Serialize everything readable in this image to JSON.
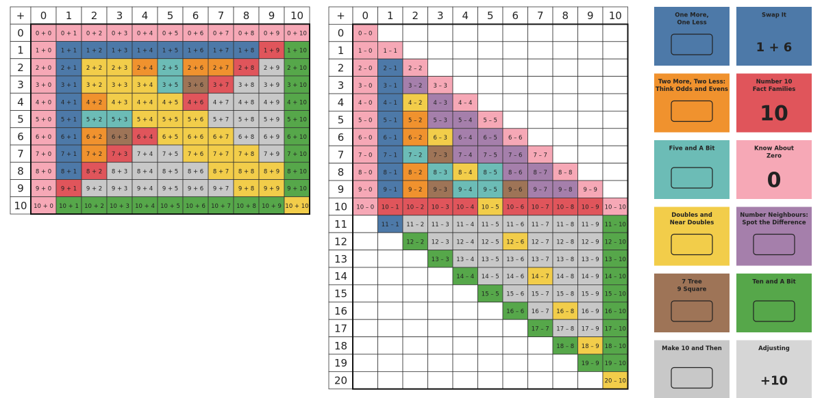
{
  "addition_table": {
    "corner": "+",
    "columns": [
      0,
      1,
      2,
      3,
      4,
      5,
      6,
      7,
      8,
      9,
      10
    ],
    "rows": [
      {
        "label": 0,
        "cells": [
          "0 + 0",
          "0 + 1",
          "0 + 2",
          "0 + 3",
          "0 + 4",
          "0 + 5",
          "0 + 6",
          "0 + 7",
          "0 + 8",
          "0 + 9",
          "0 + 10"
        ],
        "strategy": [
          5,
          5,
          5,
          5,
          5,
          5,
          5,
          5,
          5,
          5,
          5
        ]
      },
      {
        "label": 1,
        "cells": [
          "1 + 0",
          "1 + 1",
          "1 + 2",
          "1 + 3",
          "1 + 4",
          "1 + 5",
          "1 + 6",
          "1 + 7",
          "1 + 8",
          "1 + 9",
          "1 + 10"
        ],
        "strategy": [
          5,
          0,
          0,
          0,
          0,
          0,
          0,
          0,
          0,
          3,
          9
        ]
      },
      {
        "label": 2,
        "cells": [
          "2 + 0",
          "2 + 1",
          "2 + 2",
          "2 + 3",
          "2 + 4",
          "2 + 5",
          "2 + 6",
          "2 + 7",
          "2 + 8",
          "2 + 9",
          "2 + 10"
        ],
        "strategy": [
          5,
          0,
          6,
          6,
          2,
          4,
          2,
          2,
          3,
          10,
          9
        ]
      },
      {
        "label": 3,
        "cells": [
          "3 + 0",
          "3 + 1",
          "3 + 2",
          "3 + 3",
          "3 + 4",
          "3 + 5",
          "3 + 6",
          "3 + 7",
          "3 + 8",
          "3 + 9",
          "3 + 10"
        ],
        "strategy": [
          5,
          0,
          6,
          6,
          6,
          4,
          8,
          3,
          10,
          10,
          9
        ]
      },
      {
        "label": 4,
        "cells": [
          "4 + 0",
          "4 + 1",
          "4 + 2",
          "4 + 3",
          "4 + 4",
          "4 + 5",
          "4 + 6",
          "4 + 7",
          "4 + 8",
          "4 + 9",
          "4 + 10"
        ],
        "strategy": [
          5,
          0,
          2,
          6,
          6,
          6,
          3,
          10,
          10,
          10,
          9
        ]
      },
      {
        "label": 5,
        "cells": [
          "5 + 0",
          "5 + 1",
          "5 + 2",
          "5 + 3",
          "5 + 4",
          "5 + 5",
          "5 + 6",
          "5 + 7",
          "5 + 8",
          "5 + 9",
          "5 + 10"
        ],
        "strategy": [
          5,
          0,
          4,
          4,
          6,
          6,
          6,
          10,
          10,
          10,
          9
        ]
      },
      {
        "label": 6,
        "cells": [
          "6 + 0",
          "6 + 1",
          "6 + 2",
          "6 + 3",
          "6 + 4",
          "6 + 5",
          "6 + 6",
          "6 + 7",
          "6 + 8",
          "6 + 9",
          "6 + 10"
        ],
        "strategy": [
          5,
          0,
          2,
          8,
          3,
          6,
          6,
          6,
          10,
          10,
          9
        ]
      },
      {
        "label": 7,
        "cells": [
          "7 + 0",
          "7 + 1",
          "7 + 2",
          "7 + 3",
          "7 + 4",
          "7 + 5",
          "7 + 6",
          "7 + 7",
          "7 + 8",
          "7 + 9",
          "7 + 10"
        ],
        "strategy": [
          5,
          0,
          2,
          3,
          10,
          10,
          6,
          6,
          6,
          10,
          9
        ]
      },
      {
        "label": 8,
        "cells": [
          "8 + 0",
          "8 + 1",
          "8 + 2",
          "8 + 3",
          "8 + 4",
          "8 + 5",
          "8 + 6",
          "8 + 7",
          "8 + 8",
          "8 + 9",
          "8 + 10"
        ],
        "strategy": [
          5,
          0,
          3,
          10,
          10,
          10,
          10,
          6,
          6,
          6,
          9
        ]
      },
      {
        "label": 9,
        "cells": [
          "9 + 0",
          "9 + 1",
          "9 + 2",
          "9 + 3",
          "9 + 4",
          "9 + 5",
          "9 + 6",
          "9 + 7",
          "9 + 8",
          "9 + 9",
          "9 + 10"
        ],
        "strategy": [
          5,
          3,
          10,
          10,
          10,
          10,
          10,
          10,
          6,
          6,
          9
        ]
      },
      {
        "label": 10,
        "cells": [
          "10 + 0",
          "10 + 1",
          "10 + 2",
          "10 + 3",
          "10 + 4",
          "10 + 5",
          "10 + 6",
          "10 + 7",
          "10 + 8",
          "10 + 9",
          "10 + 10"
        ],
        "strategy": [
          5,
          9,
          9,
          9,
          9,
          9,
          9,
          9,
          9,
          9,
          6
        ]
      }
    ]
  },
  "subtraction_table": {
    "corner": "+",
    "columns": [
      0,
      1,
      2,
      3,
      4,
      5,
      6,
      7,
      8,
      9,
      10
    ],
    "rows": [
      {
        "label": 0,
        "cells": [
          "0 – 0",
          null,
          null,
          null,
          null,
          null,
          null,
          null,
          null,
          null,
          null
        ],
        "strategy": [
          5,
          null,
          null,
          null,
          null,
          null,
          null,
          null,
          null,
          null,
          null
        ]
      },
      {
        "label": 1,
        "cells": [
          "1 – 0",
          "1 – 1",
          null,
          null,
          null,
          null,
          null,
          null,
          null,
          null,
          null
        ],
        "strategy": [
          5,
          5,
          null,
          null,
          null,
          null,
          null,
          null,
          null,
          null,
          null
        ]
      },
      {
        "label": 2,
        "cells": [
          "2 – 0",
          "2 – 1",
          "2 – 2",
          null,
          null,
          null,
          null,
          null,
          null,
          null,
          null
        ],
        "strategy": [
          5,
          0,
          5,
          null,
          null,
          null,
          null,
          null,
          null,
          null,
          null
        ]
      },
      {
        "label": 3,
        "cells": [
          "3 – 0",
          "3 – 1",
          "3 – 2",
          "3 – 3",
          null,
          null,
          null,
          null,
          null,
          null,
          null
        ],
        "strategy": [
          5,
          0,
          7,
          5,
          null,
          null,
          null,
          null,
          null,
          null,
          null
        ]
      },
      {
        "label": 4,
        "cells": [
          "4 – 0",
          "4 – 1",
          "4 – 2",
          "4 – 3",
          "4 – 4",
          null,
          null,
          null,
          null,
          null,
          null
        ],
        "strategy": [
          5,
          0,
          6,
          7,
          5,
          null,
          null,
          null,
          null,
          null,
          null
        ]
      },
      {
        "label": 5,
        "cells": [
          "5 – 0",
          "5 – 1",
          "5 – 2",
          "5 – 3",
          "5 – 4",
          "5 – 5",
          null,
          null,
          null,
          null,
          null
        ],
        "strategy": [
          5,
          0,
          2,
          7,
          7,
          5,
          null,
          null,
          null,
          null,
          null
        ]
      },
      {
        "label": 6,
        "cells": [
          "6 – 0",
          "6 – 1",
          "6 – 2",
          "6 – 3",
          "6 – 4",
          "6 – 5",
          "6 – 6",
          null,
          null,
          null,
          null
        ],
        "strategy": [
          5,
          0,
          2,
          6,
          7,
          7,
          5,
          null,
          null,
          null,
          null
        ]
      },
      {
        "label": 7,
        "cells": [
          "7 – 0",
          "7 – 1",
          "7 – 2",
          "7 – 3",
          "7 – 4",
          "7 – 5",
          "7 – 6",
          "7 – 7",
          null,
          null,
          null
        ],
        "strategy": [
          5,
          0,
          4,
          8,
          7,
          7,
          7,
          5,
          null,
          null,
          null
        ]
      },
      {
        "label": 8,
        "cells": [
          "8 – 0",
          "8 – 1",
          "8 – 2",
          "8 – 3",
          "8 – 4",
          "8 – 5",
          "8 – 6",
          "8 – 7",
          "8 – 8",
          null,
          null
        ],
        "strategy": [
          5,
          0,
          2,
          4,
          6,
          4,
          7,
          7,
          5,
          null,
          null
        ]
      },
      {
        "label": 9,
        "cells": [
          "9 – 0",
          "9 – 1",
          "9 – 2",
          "9 – 3",
          "9 – 4",
          "9 – 5",
          "9 – 6",
          "9 – 7",
          "9 – 8",
          "9 – 9",
          null
        ],
        "strategy": [
          5,
          0,
          2,
          8,
          4,
          4,
          8,
          7,
          7,
          5,
          null
        ]
      },
      {
        "label": 10,
        "cells": [
          "10 – 0",
          "10 – 1",
          "10 – 2",
          "10 – 3",
          "10 – 4",
          "10 – 5",
          "10 – 6",
          "10 – 7",
          "10 – 8",
          "10 – 9",
          "10 – 10"
        ],
        "strategy": [
          5,
          3,
          3,
          3,
          3,
          6,
          3,
          3,
          3,
          3,
          5
        ]
      },
      {
        "label": 11,
        "cells": [
          null,
          "11 – 1",
          "11 – 2",
          "11 – 3",
          "11 – 4",
          "11 – 5",
          "11 – 6",
          "11 – 7",
          "11 – 8",
          "11 – 9",
          "11 – 10"
        ],
        "strategy": [
          null,
          0,
          10,
          10,
          10,
          10,
          10,
          10,
          10,
          10,
          9
        ]
      },
      {
        "label": 12,
        "cells": [
          null,
          null,
          "12 – 2",
          "12 – 3",
          "12 – 4",
          "12 – 5",
          "12 – 6",
          "12 – 7",
          "12 – 8",
          "12 – 9",
          "12 – 10"
        ],
        "strategy": [
          null,
          null,
          9,
          10,
          10,
          10,
          6,
          10,
          10,
          10,
          9
        ]
      },
      {
        "label": 13,
        "cells": [
          null,
          null,
          null,
          "13 – 3",
          "13 – 4",
          "13 – 5",
          "13 – 6",
          "13 – 7",
          "13 – 8",
          "13 – 9",
          "13 – 10"
        ],
        "strategy": [
          null,
          null,
          null,
          9,
          10,
          10,
          10,
          10,
          10,
          10,
          9
        ]
      },
      {
        "label": 14,
        "cells": [
          null,
          null,
          null,
          null,
          "14 – 4",
          "14 – 5",
          "14 – 6",
          "14 – 7",
          "14 – 8",
          "14 – 9",
          "14 – 10"
        ],
        "strategy": [
          null,
          null,
          null,
          null,
          9,
          10,
          10,
          6,
          10,
          10,
          9
        ]
      },
      {
        "label": 15,
        "cells": [
          null,
          null,
          null,
          null,
          null,
          "15 – 5",
          "15 – 6",
          "15 – 7",
          "15 – 8",
          "15 – 9",
          "15 – 10"
        ],
        "strategy": [
          null,
          null,
          null,
          null,
          null,
          9,
          10,
          10,
          10,
          10,
          9
        ]
      },
      {
        "label": 16,
        "cells": [
          null,
          null,
          null,
          null,
          null,
          null,
          "16 – 6",
          "16 – 7",
          "16 – 8",
          "16 – 9",
          "16 – 10"
        ],
        "strategy": [
          null,
          null,
          null,
          null,
          null,
          null,
          9,
          10,
          6,
          10,
          9
        ]
      },
      {
        "label": 17,
        "cells": [
          null,
          null,
          null,
          null,
          null,
          null,
          null,
          "17 – 7",
          "17 – 8",
          "17 – 9",
          "17 – 10"
        ],
        "strategy": [
          null,
          null,
          null,
          null,
          null,
          null,
          null,
          9,
          10,
          10,
          9
        ]
      },
      {
        "label": 18,
        "cells": [
          null,
          null,
          null,
          null,
          null,
          null,
          null,
          null,
          "18 – 8",
          "18 – 9",
          "18 – 10"
        ],
        "strategy": [
          null,
          null,
          null,
          null,
          null,
          null,
          null,
          null,
          9,
          6,
          9
        ]
      },
      {
        "label": 19,
        "cells": [
          null,
          null,
          null,
          null,
          null,
          null,
          null,
          null,
          null,
          "19 – 9",
          "19 – 10"
        ],
        "strategy": [
          null,
          null,
          null,
          null,
          null,
          null,
          null,
          null,
          null,
          9,
          9
        ]
      },
      {
        "label": 20,
        "cells": [
          null,
          null,
          null,
          null,
          null,
          null,
          null,
          null,
          null,
          null,
          "20 – 10"
        ],
        "strategy": [
          null,
          null,
          null,
          null,
          null,
          null,
          null,
          null,
          null,
          null,
          6
        ]
      }
    ]
  },
  "cards": [
    {
      "title": [
        "One More,",
        "One Less"
      ],
      "color": "#4d79a8"
    },
    {
      "title": [
        "Swap It"
      ],
      "color": "#4d79a8",
      "big": "1 + 6"
    },
    {
      "title": [
        "Two More, Two Less:",
        "Think Odds and Evens"
      ],
      "color": "#f0922e"
    },
    {
      "title": [
        "Number 10",
        "Fact Families"
      ],
      "color": "#e0555b",
      "big": "10"
    },
    {
      "title": [
        "Five and A Bit"
      ],
      "color": "#6cbcb6"
    },
    {
      "title": [
        "Know About",
        "Zero"
      ],
      "color": "#f6a8b6",
      "big": "0"
    },
    {
      "title": [
        "Doubles and",
        "Near Doubles"
      ],
      "color": "#f2cd4a"
    },
    {
      "title": [
        "Number Neighbours:",
        "Spot the Difference"
      ],
      "color": "#a57fab"
    },
    {
      "title": [
        "7 Tree",
        "9 Square"
      ],
      "color": "#9e7457"
    },
    {
      "title": [
        "Ten and A Bit"
      ],
      "color": "#56a74a"
    },
    {
      "title": [
        "Make 10 and Then"
      ],
      "color": "#c8c8c8"
    },
    {
      "title": [
        "Adjusting"
      ],
      "color": "#d6d6d6",
      "big": "+10"
    }
  ]
}
